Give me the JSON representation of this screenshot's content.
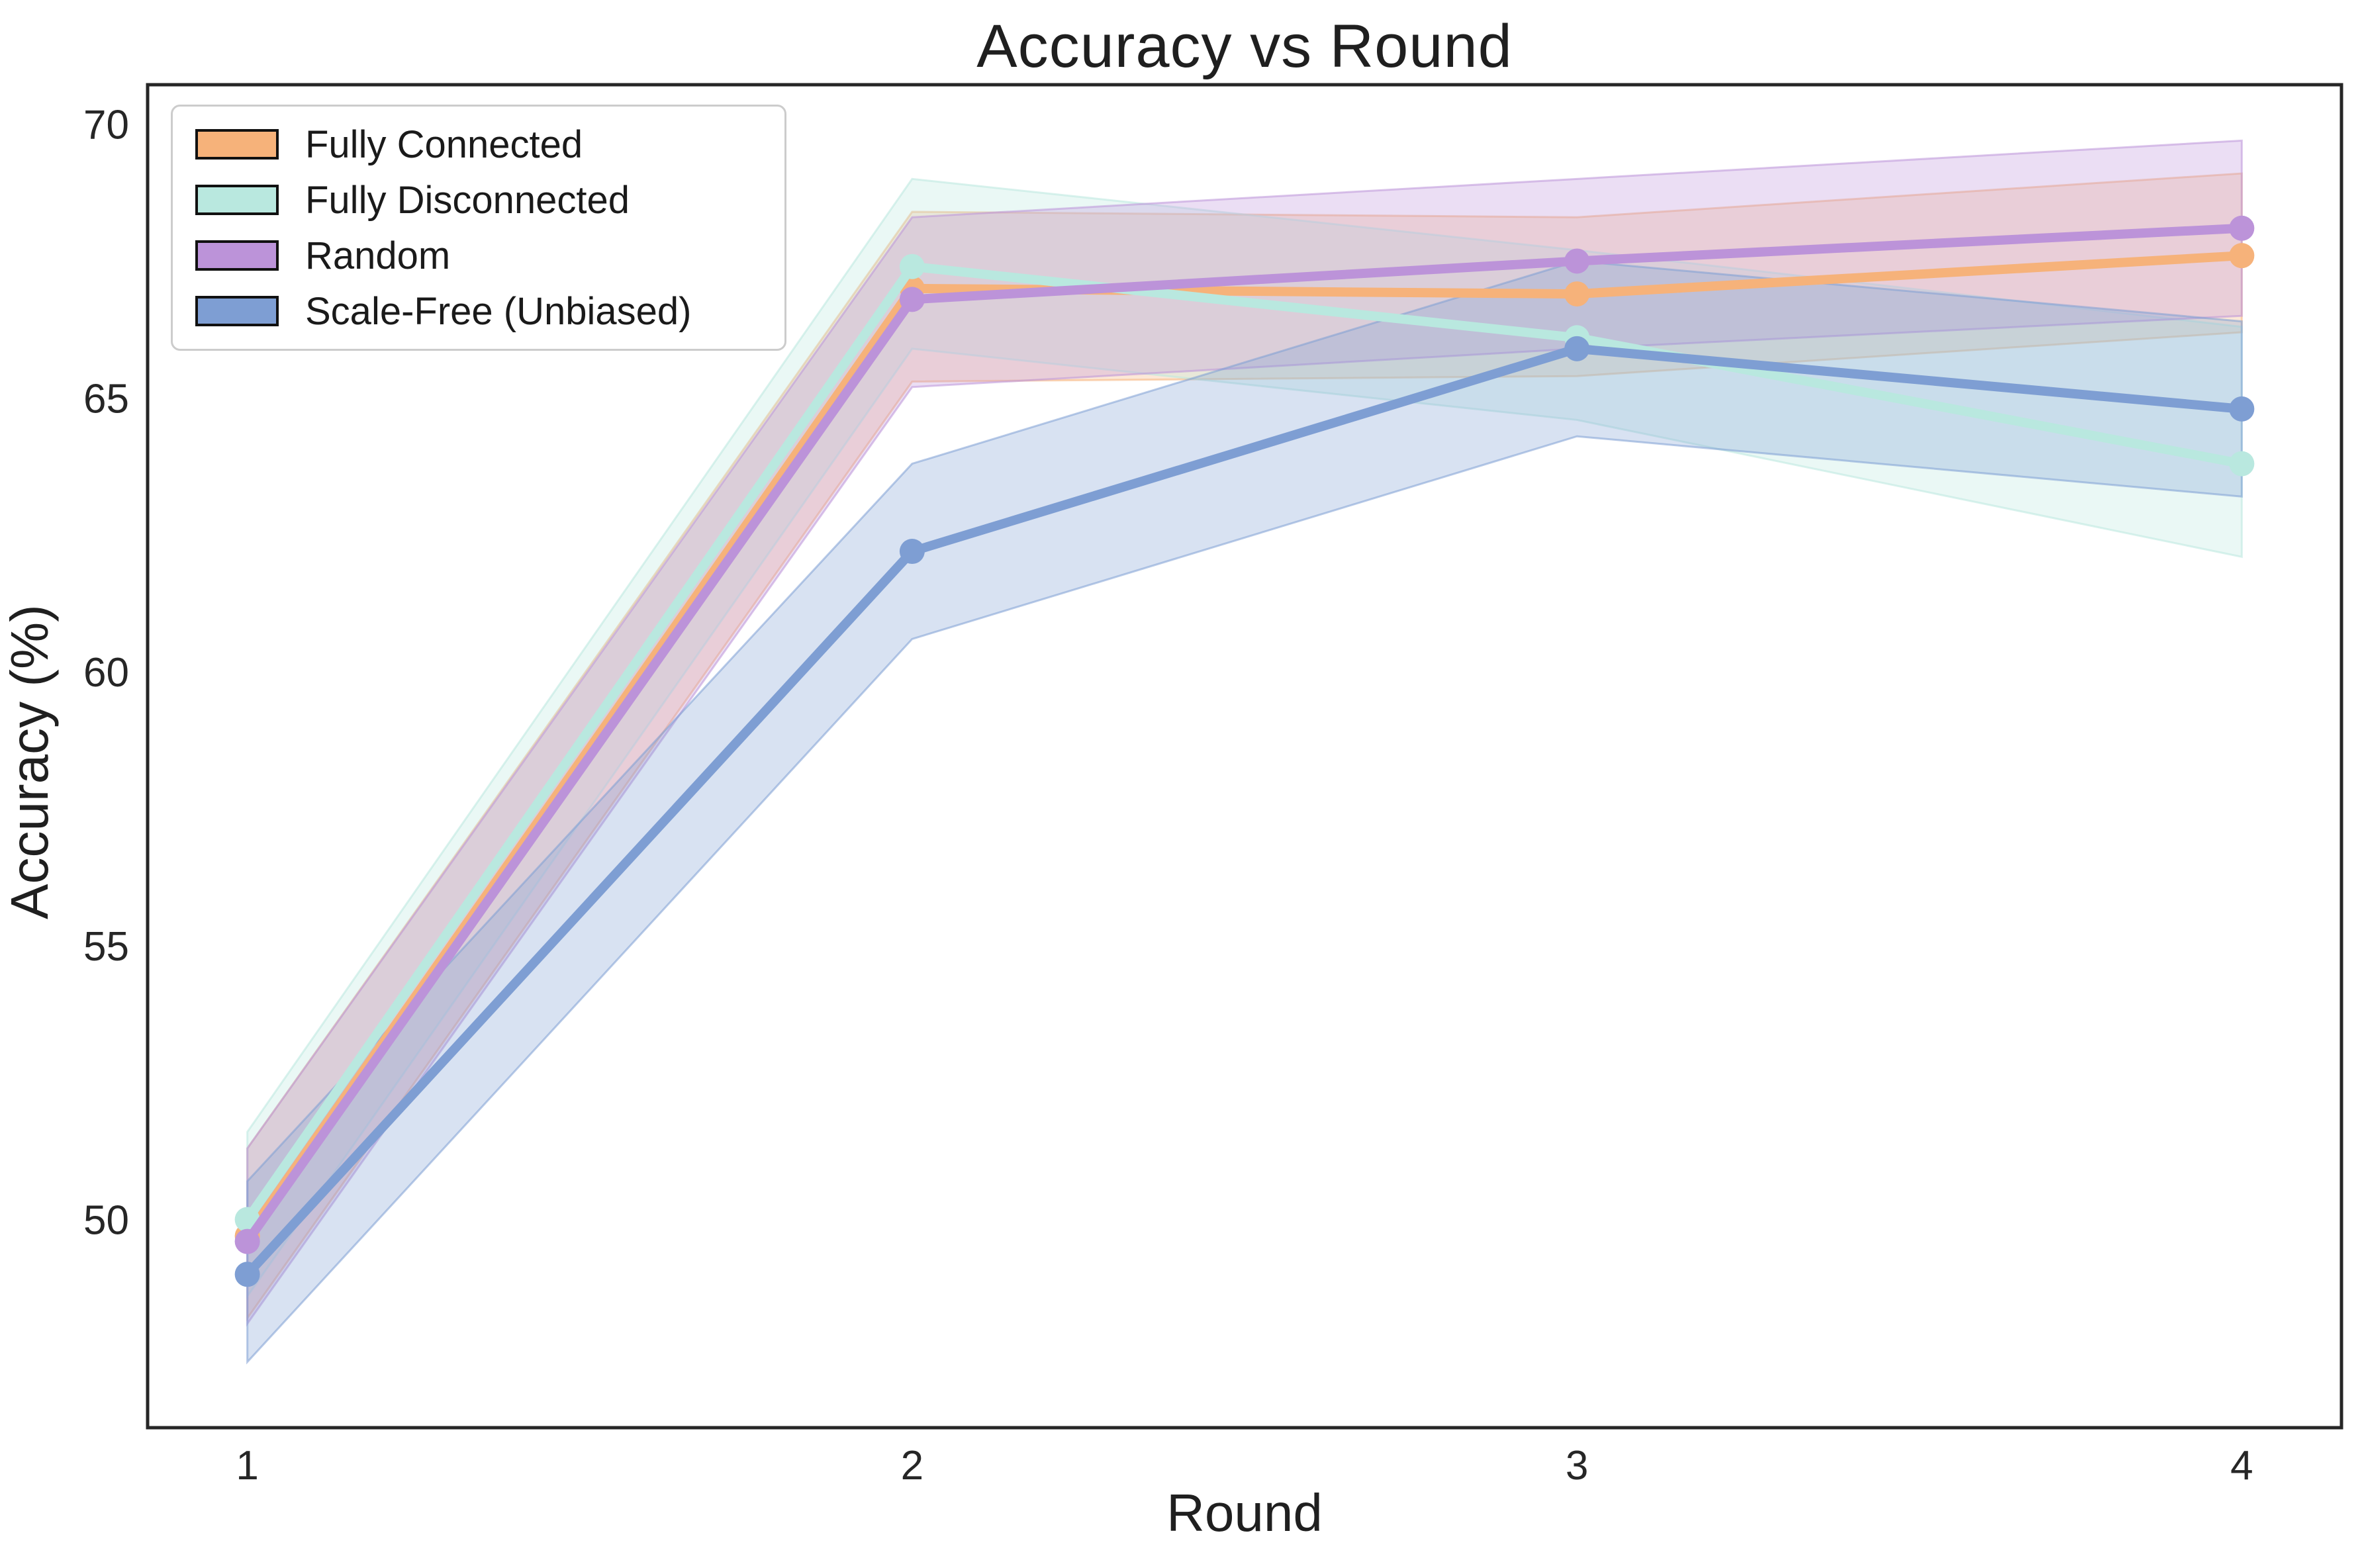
{
  "figure": {
    "title": "Accuracy vs Round",
    "xlabel": "Round",
    "ylabel": "Accuracy (%)",
    "background_color": "#ffffff",
    "spine_color": "#262626",
    "legend_border_color": "#cccccc"
  },
  "chart_data": {
    "type": "line",
    "title": "Accuracy vs Round",
    "xlabel": "Round",
    "ylabel": "Accuracy (%)",
    "x": [
      1,
      2,
      3,
      4
    ],
    "x_tick_labels": [
      "1",
      "2",
      "3",
      "4"
    ],
    "y_ticks": [
      50,
      55,
      60,
      65,
      70
    ],
    "xlim": [
      0.85,
      4.15
    ],
    "ylim": [
      46.2,
      70.72
    ],
    "grid": false,
    "legend_position": "upper left",
    "marker": "circle",
    "band_opacity": 0.3,
    "series": [
      {
        "name": "Fully Connected",
        "color": "#F6B27A",
        "values": [
          49.7,
          67.0,
          66.9,
          67.6
        ],
        "band_lower": [
          48.2,
          65.3,
          65.4,
          66.2
        ],
        "band_upper": [
          51.3,
          68.4,
          68.3,
          69.1
        ]
      },
      {
        "name": "Fully Disconnected",
        "color": "#B9E8DF",
        "values": [
          50.0,
          67.4,
          66.1,
          63.8
        ],
        "band_lower": [
          48.6,
          65.9,
          64.6,
          62.1
        ],
        "band_upper": [
          51.6,
          69.0,
          67.7,
          66.3
        ]
      },
      {
        "name": "Random",
        "color": "#BC93D9",
        "values": [
          49.6,
          66.8,
          67.5,
          68.1
        ],
        "band_lower": [
          48.1,
          65.2,
          65.9,
          66.5
        ],
        "band_upper": [
          51.3,
          68.3,
          69.0,
          69.7
        ]
      },
      {
        "name": "Scale-Free (Unbiased)",
        "color": "#7E9ED3",
        "values": [
          49.0,
          62.2,
          65.9,
          64.8
        ],
        "band_lower": [
          47.4,
          60.6,
          64.3,
          63.2
        ],
        "band_upper": [
          50.7,
          63.8,
          67.5,
          66.4
        ]
      }
    ]
  }
}
